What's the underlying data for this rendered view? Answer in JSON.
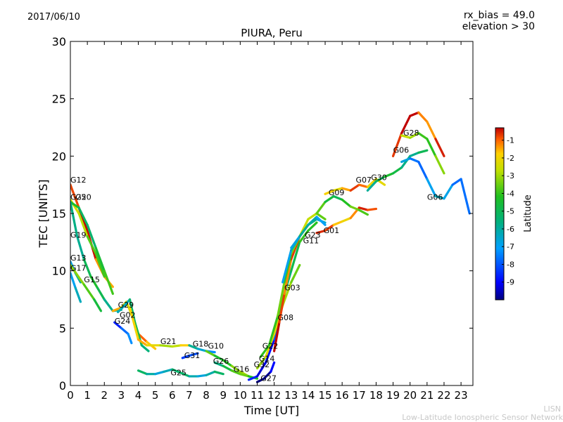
{
  "header": {
    "date": "2017/06/10",
    "rx_bias": "rx_bias = 49.0",
    "elevation": "elevation > 30"
  },
  "footer": {
    "org_short": "LISN",
    "org_full": "Low-Latitude Ionospheric Sensor Network"
  },
  "chart_data": {
    "type": "scatter",
    "title": "PIURA, Peru",
    "xlabel": "Time [UT]",
    "ylabel": "TEC [UNITS]",
    "xlim": [
      0,
      23.7
    ],
    "ylim": [
      0,
      30
    ],
    "x_ticks": [
      "0",
      "1",
      "2",
      "3",
      "4",
      "5",
      "6",
      "7",
      "8",
      "9",
      "10",
      "11",
      "12",
      "13",
      "14",
      "15",
      "16",
      "17",
      "18",
      "19",
      "20",
      "21",
      "22",
      "23"
    ],
    "y_ticks": [
      "0",
      "5",
      "10",
      "15",
      "20",
      "25",
      "30"
    ],
    "colorbar": {
      "label": "Latitude",
      "range": [
        -10,
        -0.3
      ],
      "ticks": [
        "-1",
        "-2",
        "-3",
        "-4",
        "-5",
        "-6",
        "-7",
        "-8",
        "-9"
      ]
    },
    "series": [
      {
        "name": "G12",
        "label_at": [
          0.0,
          17.7
        ],
        "points": [
          [
            0,
            17.5
          ],
          [
            0.5,
            15.5
          ],
          [
            1,
            13.5
          ],
          [
            1.5,
            11
          ],
          [
            2,
            9.5
          ],
          [
            2.5,
            8.6
          ]
        ]
      },
      {
        "name": "G25",
        "label_at": [
          0.0,
          16.2
        ],
        "points": [
          [
            0,
            16.2
          ],
          [
            0.5,
            15
          ],
          [
            1,
            13
          ],
          [
            1.5,
            11.5
          ],
          [
            2,
            9.5
          ]
        ]
      },
      {
        "name": "G20",
        "label_at": [
          0.3,
          16.2
        ],
        "points": [
          [
            0,
            16
          ],
          [
            0.5,
            15.5
          ],
          [
            1,
            14
          ],
          [
            1.5,
            12
          ],
          [
            2,
            10
          ],
          [
            2.5,
            8
          ]
        ]
      },
      {
        "name": "G19",
        "label_at": [
          0.0,
          12.9
        ],
        "points": [
          [
            0,
            16
          ],
          [
            0.4,
            13
          ],
          [
            0.8,
            11
          ],
          [
            1.2,
            9.5
          ],
          [
            1.6,
            8.5
          ],
          [
            2,
            7.5
          ],
          [
            2.5,
            6.5
          ],
          [
            3,
            6.6
          ]
        ]
      },
      {
        "name": "G13",
        "label_at": [
          0.0,
          10.9
        ],
        "points": [
          [
            0,
            10.8
          ],
          [
            0.3,
            9.8
          ],
          [
            0.6,
            9
          ]
        ]
      },
      {
        "name": "G17",
        "label_at": [
          0.0,
          10.0
        ],
        "points": [
          [
            0,
            9.8
          ],
          [
            0.3,
            8.5
          ],
          [
            0.6,
            7.3
          ]
        ]
      },
      {
        "name": "G15",
        "label_at": [
          0.8,
          9.0
        ],
        "points": [
          [
            0,
            10.5
          ],
          [
            0.8,
            8.8
          ],
          [
            1.4,
            7.5
          ],
          [
            1.8,
            6.5
          ]
        ]
      },
      {
        "name": "G29",
        "label_at": [
          2.8,
          6.8
        ],
        "points": [
          [
            2.5,
            6.5
          ],
          [
            3,
            6.8
          ],
          [
            3.3,
            7.3
          ],
          [
            3.6,
            6.2
          ],
          [
            4,
            4.5
          ],
          [
            4.5,
            3.8
          ],
          [
            5,
            3.2
          ]
        ]
      },
      {
        "name": "G02",
        "label_at": [
          2.9,
          5.9
        ],
        "points": [
          [
            2.8,
            6.4
          ],
          [
            3.2,
            7
          ],
          [
            3.5,
            7.5
          ],
          [
            3.8,
            5.5
          ],
          [
            4.2,
            3.5
          ],
          [
            4.6,
            3
          ]
        ]
      },
      {
        "name": "G24",
        "label_at": [
          2.6,
          5.4
        ],
        "points": [
          [
            2.6,
            5.5
          ],
          [
            3,
            5
          ],
          [
            3.4,
            4.5
          ],
          [
            3.6,
            3.7
          ]
        ]
      },
      {
        "name": "G21",
        "label_at": [
          5.3,
          3.6
        ],
        "points": [
          [
            3.5,
            6.8
          ],
          [
            4,
            4
          ],
          [
            4.5,
            3.5
          ],
          [
            5.3,
            3.5
          ],
          [
            6,
            3.4
          ],
          [
            6.5,
            3.5
          ],
          [
            7,
            3.5
          ]
        ]
      },
      {
        "name": "G18",
        "label_at": [
          7.2,
          3.4
        ],
        "points": [
          [
            7,
            3.5
          ],
          [
            7.5,
            3.2
          ],
          [
            8,
            3
          ],
          [
            8.5,
            2.9
          ]
        ]
      },
      {
        "name": "G10",
        "label_at": [
          8.1,
          3.2
        ],
        "points": [
          [
            8,
            3
          ],
          [
            8.5,
            2.6
          ],
          [
            9,
            2.2
          ],
          [
            9.5,
            1.7
          ],
          [
            10,
            1.2
          ],
          [
            10.5,
            0.8
          ]
        ]
      },
      {
        "name": "G31",
        "label_at": [
          6.7,
          2.4
        ],
        "points": [
          [
            6.6,
            2.4
          ],
          [
            7,
            2.6
          ],
          [
            7.5,
            2.8
          ]
        ]
      },
      {
        "name": "G26",
        "label_at": [
          8.4,
          1.9
        ],
        "points": [
          [
            8.5,
            2
          ],
          [
            9,
            1.7
          ],
          [
            9.5,
            1.3
          ],
          [
            10,
            1
          ]
        ]
      },
      {
        "name": "G16",
        "label_at": [
          9.6,
          1.2
        ],
        "points": [
          [
            9.5,
            1.3
          ],
          [
            10,
            1
          ],
          [
            10.5,
            0.8
          ],
          [
            11,
            0.6
          ]
        ]
      },
      {
        "name": "G25b",
        "label_at": [
          5.9,
          0.9
        ],
        "points": [
          [
            4,
            1.3
          ],
          [
            4.5,
            1
          ],
          [
            5,
            1
          ],
          [
            5.5,
            1.2
          ],
          [
            6,
            1.4
          ],
          [
            6.5,
            1.1
          ],
          [
            7,
            0.8
          ],
          [
            7.5,
            0.8
          ],
          [
            8,
            0.9
          ],
          [
            8.5,
            1.2
          ],
          [
            9,
            1
          ]
        ]
      },
      {
        "name": "G32",
        "label_at": [
          10.8,
          1.6
        ],
        "points": [
          [
            10.5,
            0.5
          ],
          [
            11,
            0.8
          ],
          [
            11.5,
            2
          ],
          [
            12,
            4
          ],
          [
            12.3,
            5.5
          ]
        ]
      },
      {
        "name": "G27",
        "label_at": [
          11.2,
          0.4
        ],
        "points": [
          [
            11,
            0.3
          ],
          [
            11.4,
            0.6
          ],
          [
            11.8,
            1.2
          ],
          [
            12,
            2
          ]
        ]
      },
      {
        "name": "G14",
        "label_at": [
          11.1,
          2.1
        ],
        "points": [
          [
            11,
            1.5
          ],
          [
            11.5,
            2.5
          ],
          [
            12,
            4.5
          ],
          [
            12.5,
            7
          ],
          [
            13,
            9
          ],
          [
            13.5,
            10.5
          ]
        ]
      },
      {
        "name": "G22",
        "label_at": [
          11.3,
          3.2
        ],
        "points": [
          [
            11.2,
            2.5
          ],
          [
            11.7,
            3.5
          ],
          [
            12.2,
            6
          ],
          [
            12.6,
            8
          ],
          [
            13,
            10
          ],
          [
            13.5,
            12.5
          ],
          [
            14,
            13.5
          ],
          [
            14.5,
            14.2
          ]
        ]
      },
      {
        "name": "G08",
        "label_at": [
          12.2,
          5.7
        ],
        "points": [
          [
            12,
            3
          ],
          [
            12.3,
            5.5
          ],
          [
            12.6,
            8
          ],
          [
            13,
            11
          ],
          [
            13.5,
            13
          ],
          [
            14,
            14
          ]
        ]
      },
      {
        "name": "G03",
        "label_at": [
          12.6,
          8.3
        ],
        "points": [
          [
            12.2,
            6
          ],
          [
            12.6,
            9
          ],
          [
            13,
            11.5
          ],
          [
            13.5,
            13
          ],
          [
            14,
            14.5
          ],
          [
            14.5,
            15
          ],
          [
            15,
            14.5
          ]
        ]
      },
      {
        "name": "G11",
        "label_at": [
          13.7,
          12.4
        ],
        "points": [
          [
            12.5,
            9
          ],
          [
            13,
            11.8
          ],
          [
            13.5,
            13
          ],
          [
            14,
            14
          ],
          [
            14.5,
            14.5
          ],
          [
            15,
            14.2
          ]
        ]
      },
      {
        "name": "G23",
        "label_at": [
          13.8,
          12.9
        ],
        "points": [
          [
            13,
            12
          ],
          [
            13.5,
            13
          ],
          [
            14,
            14
          ],
          [
            14.5,
            14.7
          ],
          [
            15,
            14
          ]
        ]
      },
      {
        "name": "G01",
        "label_at": [
          14.9,
          13.3
        ],
        "points": [
          [
            14.5,
            13.3
          ],
          [
            15,
            13.5
          ],
          [
            15.5,
            14
          ],
          [
            16,
            14.3
          ],
          [
            16.5,
            14.6
          ],
          [
            17,
            15.5
          ],
          [
            17.5,
            15.3
          ],
          [
            18,
            15.4
          ]
        ]
      },
      {
        "name": "G09",
        "label_at": [
          15.2,
          16.6
        ],
        "points": [
          [
            14.5,
            15
          ],
          [
            15,
            16
          ],
          [
            15.5,
            16.5
          ],
          [
            16,
            16.2
          ],
          [
            16.5,
            15.6
          ],
          [
            17,
            15.3
          ],
          [
            17.5,
            14.9
          ]
        ]
      },
      {
        "name": "G07",
        "label_at": [
          16.8,
          17.7
        ],
        "points": [
          [
            15,
            16.7
          ],
          [
            15.5,
            17
          ],
          [
            16,
            17.2
          ],
          [
            16.5,
            17
          ],
          [
            17,
            17.5
          ],
          [
            17.5,
            17.3
          ],
          [
            18,
            18
          ],
          [
            18.5,
            17.5
          ]
        ]
      },
      {
        "name": "G30",
        "label_at": [
          17.7,
          17.9
        ],
        "points": [
          [
            17.5,
            17
          ],
          [
            18,
            17.8
          ],
          [
            18.5,
            18.2
          ],
          [
            19,
            18.5
          ],
          [
            19.5,
            19
          ],
          [
            20,
            20
          ],
          [
            20.5,
            20.3
          ],
          [
            21,
            20.5
          ]
        ]
      },
      {
        "name": "G06",
        "label_at": [
          19.0,
          20.3
        ],
        "points": [
          [
            19,
            20
          ],
          [
            19.5,
            22
          ],
          [
            20,
            23.5
          ],
          [
            20.5,
            23.8
          ],
          [
            21,
            23
          ],
          [
            21.5,
            21.5
          ],
          [
            22,
            20
          ]
        ]
      },
      {
        "name": "G28",
        "label_at": [
          19.6,
          21.8
        ],
        "points": [
          [
            19.5,
            21.8
          ],
          [
            20,
            21.6
          ],
          [
            20.5,
            22
          ],
          [
            21,
            21.5
          ],
          [
            21.5,
            20
          ],
          [
            22,
            18.5
          ]
        ]
      },
      {
        "name": "G06b",
        "label_at": [
          21.0,
          16.2
        ],
        "points": [
          [
            19.5,
            19.5
          ],
          [
            20,
            19.8
          ],
          [
            20.5,
            19.5
          ],
          [
            21,
            18
          ],
          [
            21.5,
            16.5
          ],
          [
            22,
            16.3
          ],
          [
            22.5,
            17.5
          ],
          [
            23,
            18
          ],
          [
            23.5,
            15
          ]
        ]
      }
    ]
  }
}
